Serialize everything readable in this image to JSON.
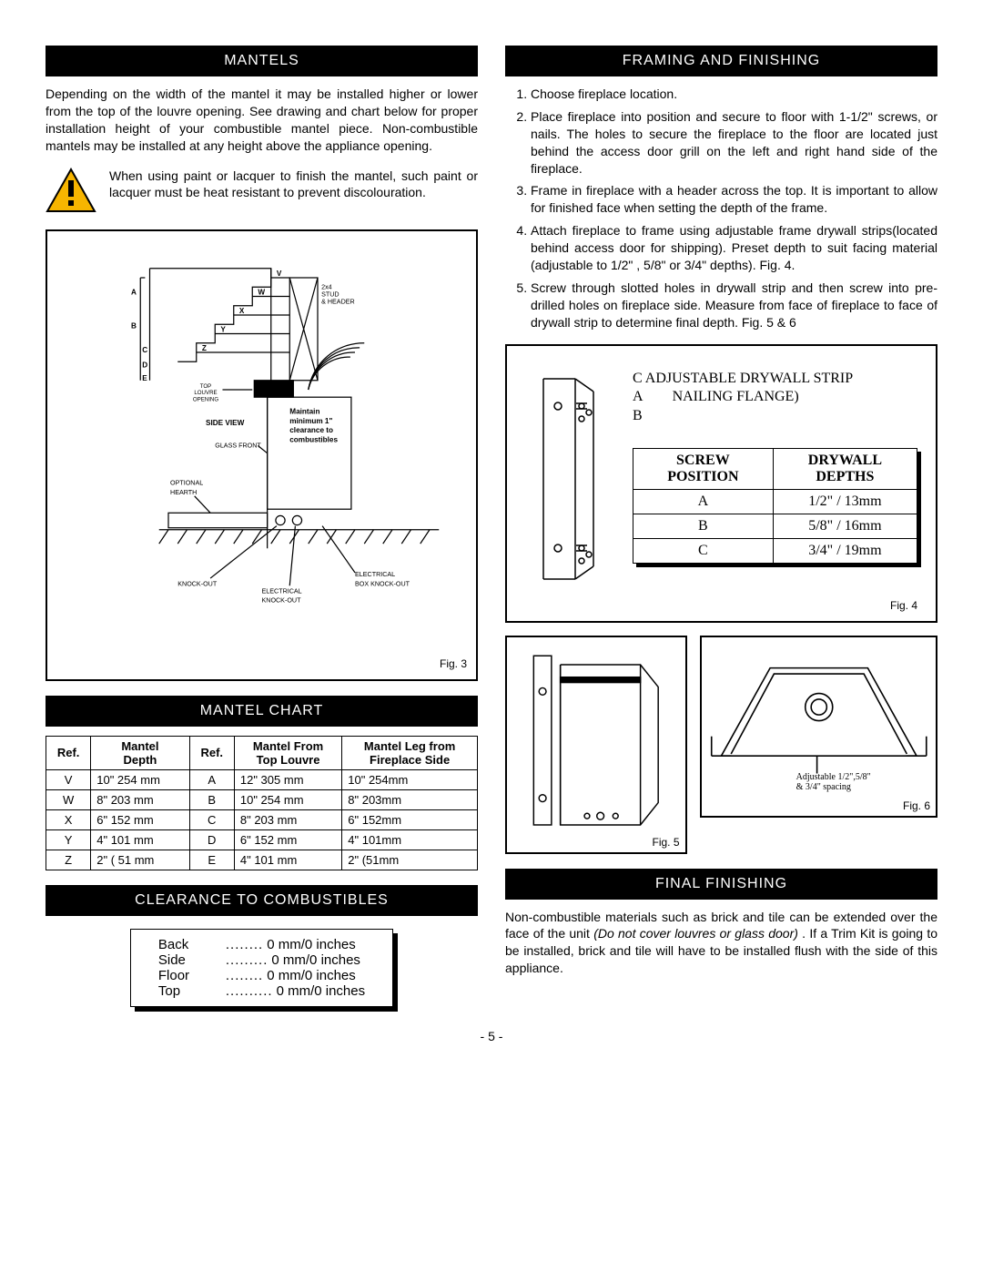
{
  "page_number": "- 5 -",
  "left": {
    "mantels_header": "MANTELS",
    "mantels_para": "Depending on the width of the mantel it may be installed higher or lower from the top of the louvre opening.  See drawing and chart below for proper installation height of your combustible mantel piece.  Non-combustible mantels may be installed at any height above the appliance opening.",
    "warn_para": "When using paint or lacquer to finish the mantel, such paint or lacquer must be heat resistant to prevent discolouration.",
    "fig3_label": "Fig. 3",
    "fig3_labels": {
      "stud": "2x4\nSTUD\n& HEADER",
      "maintain": "Maintain\nminimum 1\"\nclearance to\ncombustibles",
      "top_louvre": "TOP\nLOUVRE\nOPENING",
      "side_view": "SIDE VIEW",
      "glass_front": "GLASS FRONT",
      "optional_hearth": "OPTIONAL\nHEARTH",
      "knockout": "KNOCK-OUT",
      "elec_knockout": "ELECTRICAL\nKNOCK-OUT",
      "elec_box": "ELECTRICAL\nBOX KNOCK-OUT",
      "refs": {
        "V": "V",
        "W": "W",
        "X": "X",
        "Y": "Y",
        "Z": "Z",
        "A": "A",
        "B": "B",
        "C": "C",
        "D": "D",
        "E": "E"
      }
    },
    "mantel_chart_header": "MANTEL  CHART",
    "mantel_table": {
      "headers": [
        "Ref.",
        "Mantel\nDepth",
        "Ref.",
        "Mantel From\nTop Louvre",
        "Mantel Leg from\nFireplace Side"
      ],
      "rows": [
        [
          "V",
          "10\"  254 mm",
          "A",
          "12\"  305 mm",
          "10\" 254mm"
        ],
        [
          "W",
          "8\"  203 mm",
          "B",
          "10\"  254 mm",
          "8\" 203mm"
        ],
        [
          "X",
          "6\"  152 mm",
          "C",
          "8\"  203 mm",
          "6\" 152mm"
        ],
        [
          "Y",
          "4\"  101 mm",
          "D",
          "6\"  152 mm",
          "4\" 101mm"
        ],
        [
          "Z",
          "2\"  ( 51 mm",
          "E",
          "4\"  101 mm",
          "2\" (51mm"
        ]
      ]
    },
    "clearance_header": "CLEARANCE TO COMBUSTIBLES",
    "clearance_rows": [
      {
        "label": "Back",
        "dots": "........",
        "val": "0 mm/0 inches"
      },
      {
        "label": "Side",
        "dots": ".........",
        "val": "0 mm/0 inches"
      },
      {
        "label": "Floor",
        "dots": "........",
        "val": "0 mm/0 inches"
      },
      {
        "label": "Top",
        "dots": "..........",
        "val": "0 mm/0 inches"
      }
    ]
  },
  "right": {
    "framing_header": "FRAMING AND FINISHING",
    "framing_items": [
      "Choose fireplace location.",
      "Place fireplace into position and secure to floor with 1-1/2\" screws, or nails. The holes to secure the fireplace to the floor are located just behind the access door grill on the left and right hand side of the fireplace.",
      "Frame in fireplace with a header across the top.  It is important to allow for finished face when setting the depth of the frame.",
      "Attach fireplace to frame using adjustable frame drywall strips(located behind access door for shipping).  Preset depth to suit facing material (adjustable to 1/2\" , 5/8\" or 3/4\" depths). Fig. 4.",
      "Screw through slotted holes in drywall strip and then screw into pre-drilled holes on fireplace side. Measure from face of fireplace to face of drywall strip to determine final depth.  Fig. 5 & 6"
    ],
    "fig4": {
      "title_c": "C",
      "title_a": "A",
      "title_b": "B",
      "title_line1": "ADJUSTABLE DRYWALL STRIP",
      "title_line2": "NAILING FLANGE)",
      "table_headers": [
        "SCREW\nPOSITION",
        "DRYWALL\nDEPTHS"
      ],
      "table_rows": [
        [
          "A",
          "1/2\" / 13mm"
        ],
        [
          "B",
          "5/8\" / 16mm"
        ],
        [
          "C",
          "3/4\" / 19mm"
        ]
      ],
      "label": "Fig. 4"
    },
    "fig5_label": "Fig. 5",
    "fig6_label": "Fig. 6",
    "fig6_note": "Adjustable 1/2\",5/8\"\n& 3/4\" spacing",
    "final_header": "FINAL FINISHING",
    "final_para_a": "Non-combustible materials such as brick and tile can be extended over the face of the unit ",
    "final_para_b": "(Do not cover louvres or glass door) ",
    "final_para_c": ".   If a Trim Kit is going to be installed, brick and tile will have to be installed flush with the side of this appliance."
  }
}
